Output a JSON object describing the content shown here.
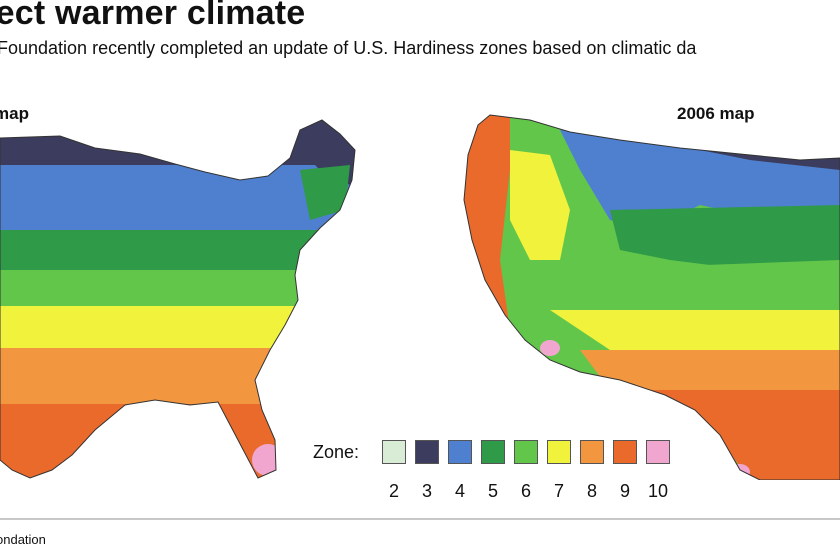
{
  "header": {
    "title": "lect warmer climate",
    "subtitle": "Foundation recently completed an update of U.S. Hardiness zones based on climatic da"
  },
  "maps": [
    {
      "label": "map"
    },
    {
      "label": "2006 map"
    }
  ],
  "legend": {
    "title": "Zone:",
    "zones": [
      {
        "zone": "2",
        "color": "#d9ecd6"
      },
      {
        "zone": "3",
        "color": "#3b3c5e"
      },
      {
        "zone": "4",
        "color": "#4f7fcf"
      },
      {
        "zone": "5",
        "color": "#2f9a48"
      },
      {
        "zone": "6",
        "color": "#62c64a"
      },
      {
        "zone": "7",
        "color": "#f1f23c"
      },
      {
        "zone": "8",
        "color": "#f2963f"
      },
      {
        "zone": "9",
        "color": "#ea6a2c"
      },
      {
        "zone": "10",
        "color": "#f0a6cf"
      }
    ]
  },
  "footer": {
    "source": "ondation"
  }
}
